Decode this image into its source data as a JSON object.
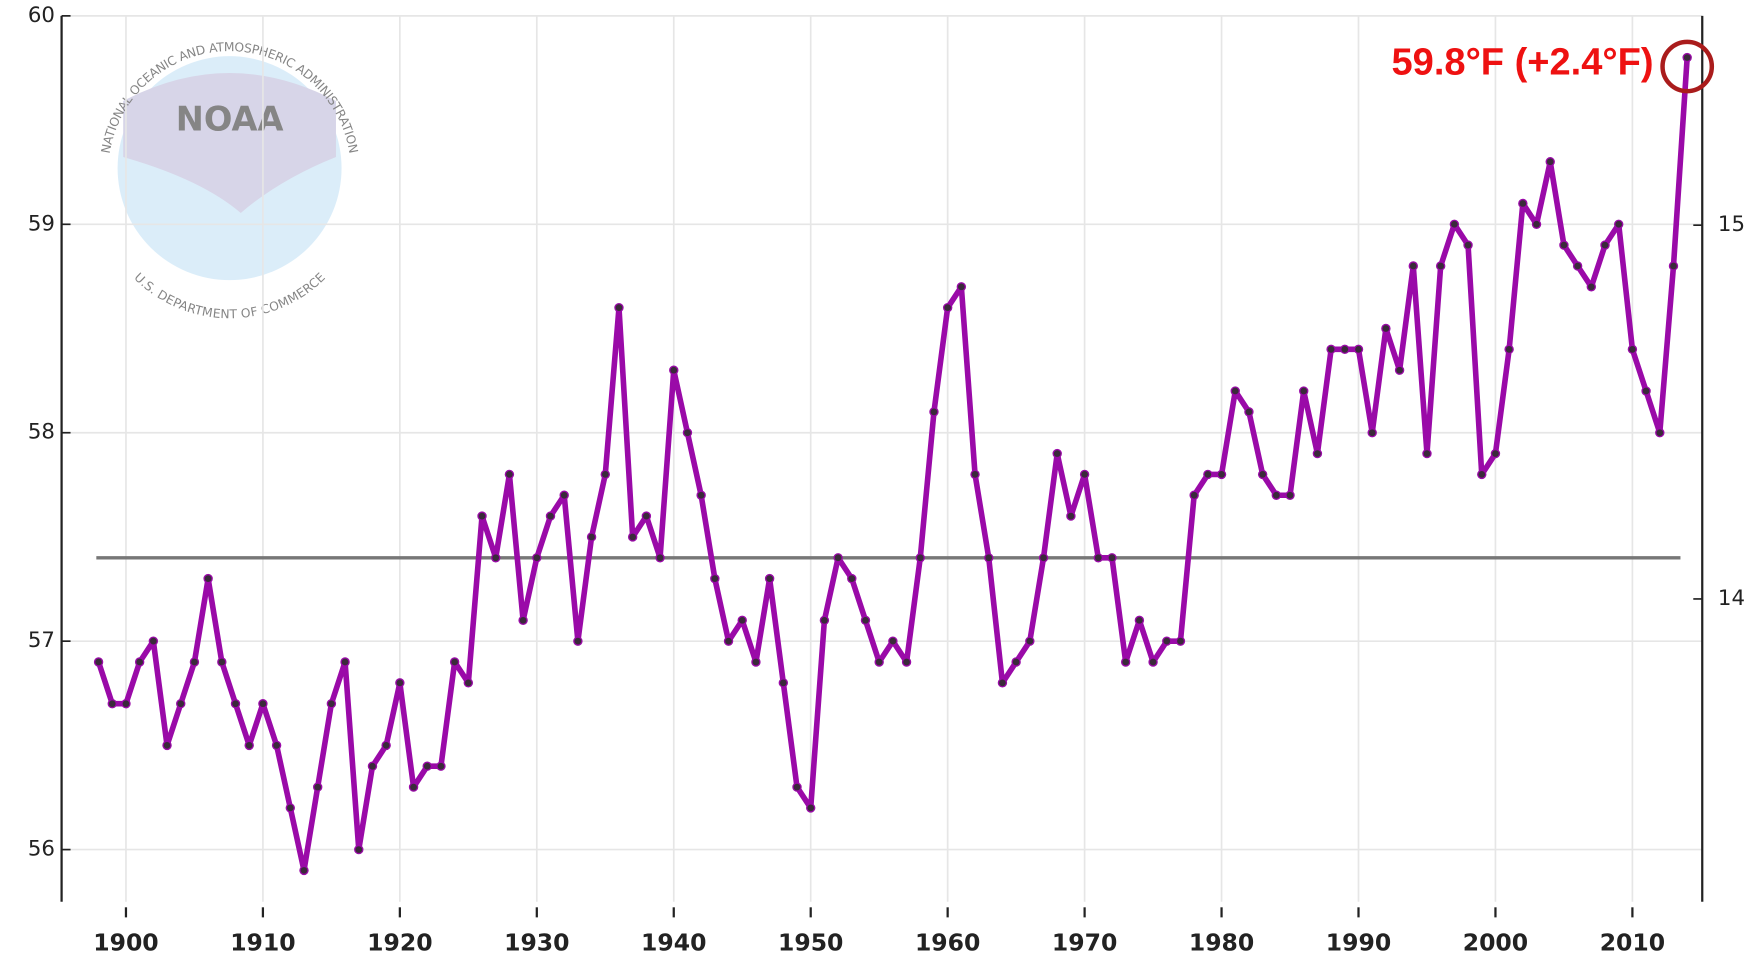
{
  "chart_data": {
    "type": "line",
    "logo": {
      "abbr": "NOAA",
      "name": "NATIONAL OCEANIC AND ATMOSPHERIC ADMINISTRATION",
      "department": "U.S. DEPARTMENT OF COMMERCE"
    },
    "x": [
      1898,
      1899,
      1900,
      1901,
      1902,
      1903,
      1904,
      1905,
      1906,
      1907,
      1908,
      1909,
      1910,
      1911,
      1912,
      1913,
      1914,
      1915,
      1916,
      1917,
      1918,
      1919,
      1920,
      1921,
      1922,
      1923,
      1924,
      1925,
      1926,
      1927,
      1928,
      1929,
      1930,
      1931,
      1932,
      1933,
      1934,
      1935,
      1936,
      1937,
      1938,
      1939,
      1940,
      1941,
      1942,
      1943,
      1944,
      1945,
      1946,
      1947,
      1948,
      1949,
      1950,
      1951,
      1952,
      1953,
      1954,
      1955,
      1956,
      1957,
      1958,
      1959,
      1960,
      1961,
      1962,
      1963,
      1964,
      1965,
      1966,
      1967,
      1968,
      1969,
      1970,
      1971,
      1972,
      1973,
      1974,
      1975,
      1976,
      1977,
      1978,
      1979,
      1980,
      1981,
      1982,
      1983,
      1984,
      1985,
      1986,
      1987,
      1988,
      1989,
      1990,
      1991,
      1992,
      1993,
      1994,
      1995,
      1996,
      1997,
      1998,
      1999,
      2000,
      2001,
      2002,
      2003,
      2004,
      2005,
      2006,
      2007,
      2008,
      2009,
      2010,
      2011,
      2012,
      2013,
      2014
    ],
    "series": [
      {
        "color": "#9a0aa8",
        "marker_color": "#3a2a3a",
        "values": [
          56.9,
          56.7,
          56.7,
          56.9,
          57.0,
          56.5,
          56.7,
          56.9,
          57.3,
          56.9,
          56.7,
          56.5,
          56.7,
          56.5,
          56.2,
          55.9,
          56.3,
          56.7,
          56.9,
          56.0,
          56.4,
          56.5,
          56.8,
          56.3,
          56.4,
          56.4,
          56.9,
          56.8,
          57.6,
          57.4,
          57.8,
          57.1,
          57.4,
          57.6,
          57.7,
          57.0,
          57.5,
          57.8,
          58.6,
          57.5,
          57.6,
          57.4,
          58.3,
          58.0,
          57.7,
          57.3,
          57.0,
          57.1,
          56.9,
          57.3,
          56.8,
          56.3,
          56.2,
          57.1,
          57.4,
          57.3,
          57.1,
          56.9,
          57.0,
          56.9,
          57.4,
          58.1,
          58.6,
          58.7,
          57.8,
          57.4,
          56.8,
          56.9,
          57.0,
          57.4,
          57.9,
          57.6,
          57.8,
          57.4,
          57.4,
          56.9,
          57.1,
          56.9,
          57.0,
          57.0,
          57.7,
          57.8,
          57.8,
          58.2,
          58.1,
          57.8,
          57.7,
          57.7,
          58.2,
          57.9,
          58.4,
          58.4,
          58.4,
          58.0,
          58.5,
          58.3,
          58.8,
          57.9,
          58.8,
          59.0,
          58.9,
          57.8,
          57.9,
          58.4,
          59.1,
          59.0,
          59.3,
          58.9,
          58.8,
          58.7,
          58.9,
          59.0,
          58.4,
          58.2,
          58.0,
          58.8,
          59.8
        ]
      }
    ],
    "baseline": 57.4,
    "baseline_color": "#777777",
    "annotation": {
      "text": "59.8°F (+2.4°F)",
      "color": "#ee1111",
      "circle_color": "#aa1c1c"
    },
    "xlim": [
      1895.3,
      2015.1
    ],
    "xticks": [
      1900,
      1910,
      1920,
      1930,
      1940,
      1950,
      1960,
      1970,
      1980,
      1990,
      2000,
      2010
    ],
    "ylim": [
      55.75,
      60
    ],
    "yticks": [
      56,
      57,
      58,
      59,
      60
    ],
    "y2lim": [
      13.19,
      15.56
    ],
    "y2ticks": [
      14,
      15
    ],
    "grid": true
  }
}
